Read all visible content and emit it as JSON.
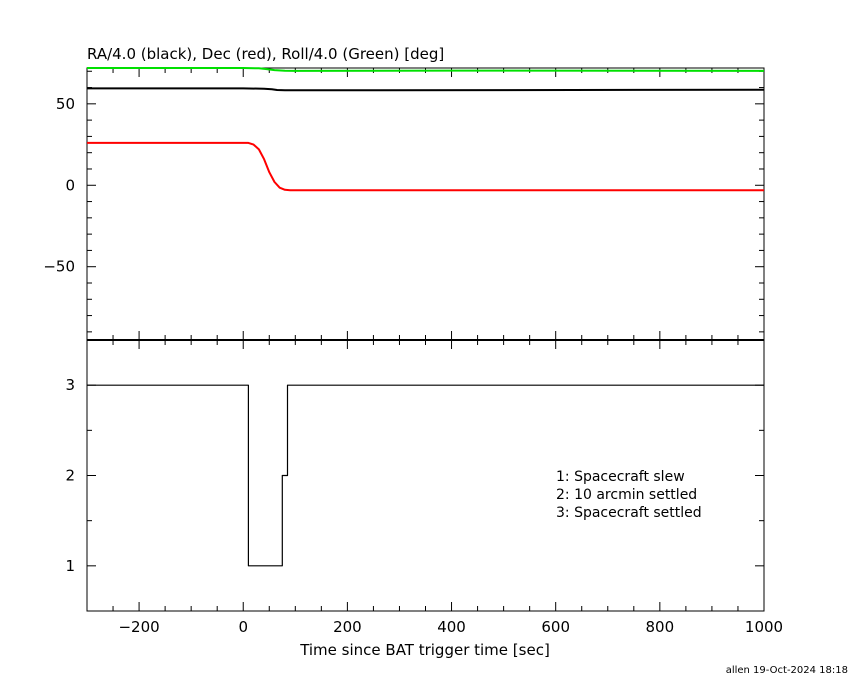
{
  "chart_data": [
    {
      "type": "line",
      "title": "RA/4.0 (black), Dec (red), Roll/4.0 (Green) [deg]",
      "xlim": [
        -300,
        1000
      ],
      "ylim": [
        -95,
        72
      ],
      "x_ticks": [
        -200,
        0,
        200,
        400,
        600,
        800,
        1000
      ],
      "y_ticks": [
        -50,
        0,
        50
      ],
      "y_tick_labels": [
        "−50",
        "0",
        "50"
      ],
      "grid": false,
      "series": [
        {
          "color": "#00e000",
          "x": [
            -300,
            0,
            30,
            45,
            60,
            80,
            100,
            400,
            1000
          ],
          "y": [
            72,
            72,
            71.8,
            71.3,
            70.7,
            70.3,
            70.2,
            70.4,
            70.2
          ]
        },
        {
          "color": "#000000",
          "x": [
            -300,
            0,
            40,
            55,
            65,
            80,
            1000
          ],
          "y": [
            59.5,
            59.5,
            59.3,
            59.0,
            58.5,
            58.3,
            58.6
          ]
        },
        {
          "color": "#ff0000",
          "x": [
            -300,
            0,
            10,
            20,
            30,
            40,
            50,
            60,
            70,
            80,
            90,
            100,
            200,
            1000
          ],
          "y": [
            26,
            26,
            26,
            25,
            22,
            16,
            8,
            2,
            -1.5,
            -2.8,
            -3,
            -3,
            -3,
            -3
          ]
        }
      ]
    },
    {
      "type": "line",
      "xlabel": "Time since BAT trigger time [sec]",
      "xlim": [
        -300,
        1000
      ],
      "ylim": [
        0.5,
        3.5
      ],
      "x_ticks": [
        -200,
        0,
        200,
        400,
        600,
        800,
        1000
      ],
      "x_tick_labels": [
        "−200",
        "0",
        "200",
        "400",
        "600",
        "800",
        "1000"
      ],
      "y_ticks": [
        1,
        2,
        3
      ],
      "y_tick_labels": [
        "1",
        "2",
        "3"
      ],
      "grid": false,
      "series": [
        {
          "color": "#000000",
          "step": true,
          "x": [
            -300,
            10,
            10,
            75,
            75,
            85,
            85,
            1000
          ],
          "y": [
            3,
            3,
            1,
            1,
            2,
            2,
            3,
            3
          ]
        }
      ],
      "annotations": [
        "1: Spacecraft slew",
        "2: 10 arcmin settled",
        "3: Spacecraft settled"
      ]
    }
  ],
  "footer": "allen 19-Oct-2024 18:18"
}
